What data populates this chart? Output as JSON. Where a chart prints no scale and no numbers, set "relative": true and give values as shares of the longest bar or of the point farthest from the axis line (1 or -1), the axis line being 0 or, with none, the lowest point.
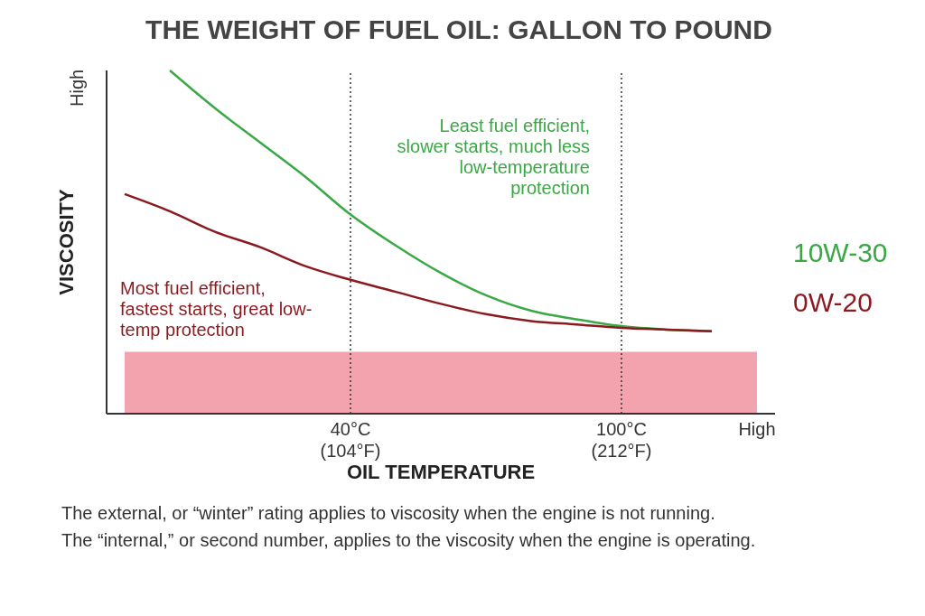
{
  "chart_data": {
    "type": "line",
    "title": "THE WEIGHT OF FUEL OIL: GALLON TO POUND",
    "xlabel": "OIL TEMPERATURE",
    "ylabel": "VISCOSITY",
    "relative": true,
    "marker": "none",
    "line_style": "solid",
    "categories": [
      null,
      null,
      null,
      null,
      null,
      "40°C\n(104°F)",
      null,
      null,
      null,
      null,
      null,
      "100°C\n(212°F)",
      null,
      null,
      "High"
    ],
    "series": [
      {
        "name": "10W-30",
        "color": "#3aa845",
        "values": [
          null,
          1,
          0.89,
          0.79,
          0.69,
          0.58,
          0.49,
          0.41,
          0.345,
          0.3,
          0.275,
          0.255,
          0.245,
          0.24,
          null
        ]
      },
      {
        "name": "0W-20",
        "color": "#8b1a1f",
        "values": [
          0.64,
          0.59,
          0.53,
          0.485,
          0.43,
          0.39,
          0.355,
          0.32,
          0.29,
          0.27,
          0.26,
          0.25,
          0.245,
          0.24,
          null
        ]
      }
    ],
    "ref_lines": [
      {
        "axis": "x",
        "value": "40°C\n(104°F)",
        "line_style": "dotted",
        "color": "#333333"
      },
      {
        "axis": "x",
        "value": "100°C\n(212°F)",
        "line_style": "dotted",
        "color": "#333333"
      }
    ],
    "bands": [
      {
        "axis": "y",
        "from": 0,
        "to": 0.18,
        "color": "#f3a3ad"
      }
    ],
    "annotations": [
      "Least fuel efficient, slower starts, much less low-temperature protection",
      "Most fuel efficient, fastest starts, great low-temp protection",
      "High",
      "The external, or “winter” rating applies to viscosity when the engine is not running.",
      "The “internal,” or second number, applies to the viscosity when the engine is operating."
    ]
  }
}
